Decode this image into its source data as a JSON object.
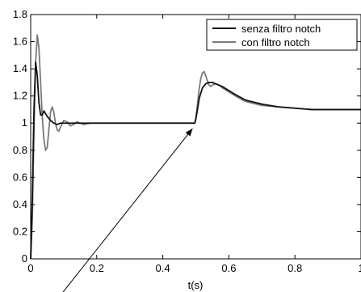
{
  "chart_data": {
    "type": "line",
    "title": "",
    "xlabel": "t(s)",
    "ylabel": "",
    "xlim": [
      0,
      1
    ],
    "ylim": [
      0,
      1.8
    ],
    "grid": false,
    "legend_position": "top-right",
    "x_ticks": [
      0,
      0.2,
      0.4,
      0.6,
      0.8,
      1
    ],
    "x_tick_labels": [
      "0",
      "0.2",
      "0.4",
      "0.6",
      "0.8",
      "1"
    ],
    "y_ticks": [
      0,
      0.2,
      0.4,
      0.6,
      0.8,
      1,
      1.2,
      1.4,
      1.6,
      1.8
    ],
    "y_tick_labels": [
      "0",
      "0.2",
      "0.4",
      "0.6",
      "0.8",
      "1",
      "1.2",
      "1.4",
      "1.6",
      "1.8"
    ],
    "series": [
      {
        "name": "senza filtro notch",
        "color": "#111111",
        "x": [
          0,
          0.005,
          0.01,
          0.015,
          0.02,
          0.025,
          0.03,
          0.035,
          0.04,
          0.05,
          0.06,
          0.07,
          0.08,
          0.09,
          0.1,
          0.12,
          0.15,
          0.2,
          0.3,
          0.4,
          0.497,
          0.5,
          0.505,
          0.51,
          0.52,
          0.53,
          0.54,
          0.55,
          0.56,
          0.58,
          0.6,
          0.62,
          0.65,
          0.7,
          0.75,
          0.8,
          0.85,
          0.9,
          0.95,
          1.0
        ],
        "y": [
          0,
          0.45,
          1.1,
          1.45,
          1.35,
          1.15,
          1.06,
          1.06,
          1.09,
          1.05,
          1.02,
          1.0,
          0.99,
          1.0,
          1.0,
          1.0,
          1.0,
          1.0,
          1.0,
          1.0,
          1.0,
          1.03,
          1.1,
          1.18,
          1.26,
          1.29,
          1.3,
          1.3,
          1.29,
          1.27,
          1.24,
          1.21,
          1.17,
          1.14,
          1.12,
          1.11,
          1.1,
          1.1,
          1.1,
          1.1
        ]
      },
      {
        "name": "con filtro notch",
        "color": "#7a7a7a",
        "x": [
          0,
          0.005,
          0.01,
          0.015,
          0.02,
          0.025,
          0.03,
          0.035,
          0.04,
          0.045,
          0.05,
          0.055,
          0.06,
          0.065,
          0.07,
          0.075,
          0.08,
          0.085,
          0.09,
          0.1,
          0.11,
          0.12,
          0.13,
          0.14,
          0.15,
          0.16,
          0.18,
          0.2,
          0.3,
          0.4,
          0.497,
          0.5,
          0.505,
          0.51,
          0.515,
          0.52,
          0.525,
          0.53,
          0.535,
          0.54,
          0.545,
          0.55,
          0.56,
          0.57,
          0.58,
          0.6,
          0.62,
          0.65,
          0.7,
          0.75,
          0.8,
          0.85,
          0.9,
          0.95,
          1.0
        ],
        "y": [
          0,
          0.3,
          0.95,
          1.45,
          1.65,
          1.55,
          1.3,
          1.05,
          0.88,
          0.8,
          0.82,
          0.95,
          1.08,
          1.12,
          1.08,
          1.0,
          0.95,
          0.94,
          0.97,
          1.02,
          1.01,
          0.98,
          0.99,
          1.01,
          1.0,
          0.99,
          1.0,
          1.0,
          1.0,
          1.0,
          1.0,
          1.04,
          1.14,
          1.25,
          1.33,
          1.37,
          1.38,
          1.35,
          1.31,
          1.28,
          1.27,
          1.28,
          1.29,
          1.28,
          1.26,
          1.23,
          1.2,
          1.16,
          1.13,
          1.12,
          1.11,
          1.1,
          1.1,
          1.1,
          1.1
        ]
      }
    ],
    "annotations": [
      {
        "type": "arrow",
        "from": [
          0.08,
          -0.3
        ],
        "to": [
          0.49,
          0.96
        ]
      }
    ]
  }
}
